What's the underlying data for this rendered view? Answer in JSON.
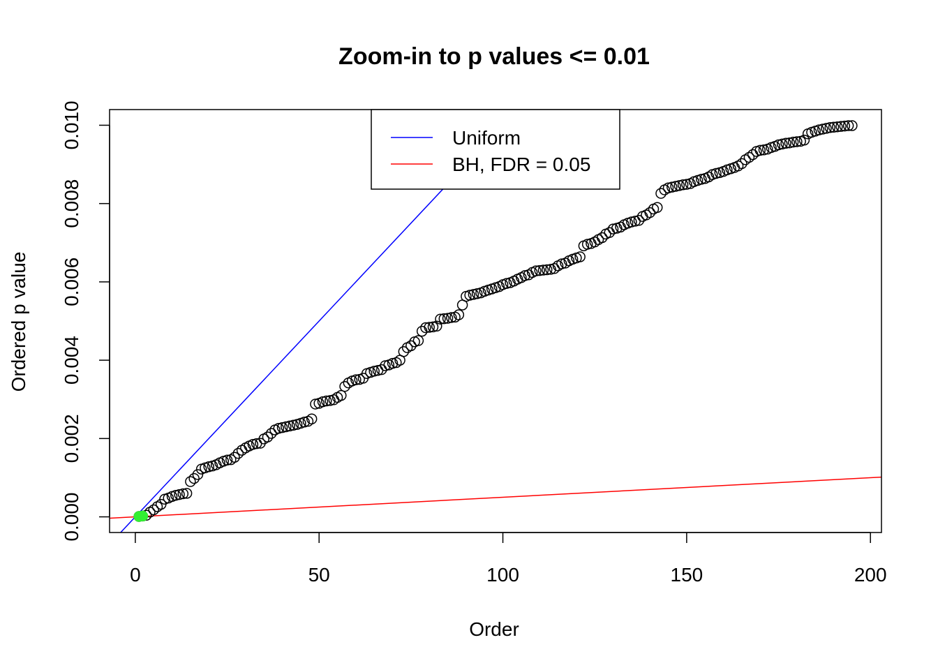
{
  "chart_data": {
    "type": "scatter",
    "title": "Zoom-in to p values <= 0.01",
    "xlabel": "Order",
    "ylabel": "Ordered p value",
    "xlim": [
      -7,
      203
    ],
    "ylim": [
      -0.0004,
      0.0104
    ],
    "x_ticks": [
      0,
      50,
      100,
      150,
      200
    ],
    "x_tick_labels": [
      "0",
      "50",
      "100",
      "150",
      "200"
    ],
    "y_ticks": [
      0,
      0.002,
      0.004,
      0.006,
      0.008,
      0.01
    ],
    "y_tick_labels": [
      "0.000",
      "0.002",
      "0.004",
      "0.006",
      "0.008",
      "0.010"
    ],
    "grid": false,
    "legend_position": "top-center",
    "legend": [
      {
        "label": "Uniform",
        "color": "#0000ff"
      },
      {
        "label": "BH, FDR = 0.05",
        "color": "#ff0000"
      }
    ],
    "lines": [
      {
        "name": "Uniform",
        "color": "#0000ff",
        "slope": 0.0001,
        "intercept": 0
      },
      {
        "name": "BH, FDR = 0.05",
        "color": "#ff0000",
        "slope": 5e-06,
        "intercept": 0
      }
    ],
    "points_color": "#000000",
    "significant_color": "#33ee33",
    "significant_points": {
      "x": [
        1,
        2
      ],
      "y": [
        1e-05,
        2e-05
      ]
    },
    "points": {
      "x": [
        1,
        2,
        3,
        4,
        5,
        6,
        7,
        8,
        9,
        10,
        11,
        12,
        13,
        14,
        15,
        16,
        17,
        18,
        19,
        20,
        21,
        22,
        23,
        24,
        25,
        26,
        27,
        28,
        29,
        30,
        31,
        32,
        33,
        34,
        35,
        36,
        37,
        38,
        39,
        40,
        41,
        42,
        43,
        44,
        45,
        46,
        47,
        48,
        49,
        50,
        51,
        52,
        53,
        54,
        55,
        56,
        57,
        58,
        59,
        60,
        61,
        62,
        63,
        64,
        65,
        66,
        67,
        68,
        69,
        70,
        71,
        72,
        73,
        74,
        75,
        76,
        77,
        78,
        79,
        80,
        81,
        82,
        83,
        84,
        85,
        86,
        87,
        88,
        89,
        90,
        91,
        92,
        93,
        94,
        95,
        96,
        97,
        98,
        99,
        100,
        101,
        102,
        103,
        104,
        105,
        106,
        107,
        108,
        109,
        110,
        111,
        112,
        113,
        114,
        115,
        116,
        117,
        118,
        119,
        120,
        121,
        122,
        123,
        124,
        125,
        126,
        127,
        128,
        129,
        130,
        131,
        132,
        133,
        134,
        135,
        136,
        137,
        138,
        139,
        140,
        141,
        142,
        143,
        144,
        145,
        146,
        147,
        148,
        149,
        150,
        151,
        152,
        153,
        154,
        155,
        156,
        157,
        158,
        159,
        160,
        161,
        162,
        163,
        164,
        165,
        166,
        167,
        168,
        169,
        170,
        171,
        172,
        173,
        174,
        175,
        176,
        177,
        178,
        179,
        180,
        181,
        182,
        183,
        184,
        185,
        186,
        187,
        188,
        189,
        190,
        191,
        192,
        193,
        194,
        195
      ],
      "y": [
        1e-05,
        2e-05,
        4e-05,
        0.00012,
        0.00018,
        0.00026,
        0.00032,
        0.00045,
        0.00048,
        0.00052,
        0.00055,
        0.00057,
        0.00059,
        0.0006,
        0.0009,
        0.00098,
        0.00108,
        0.00122,
        0.00125,
        0.00128,
        0.0013,
        0.00133,
        0.00138,
        0.00142,
        0.00145,
        0.00146,
        0.00152,
        0.00162,
        0.0017,
        0.00176,
        0.00181,
        0.00185,
        0.00187,
        0.00188,
        0.00199,
        0.00204,
        0.00213,
        0.00222,
        0.00226,
        0.00228,
        0.0023,
        0.00232,
        0.00234,
        0.00236,
        0.00239,
        0.00242,
        0.00244,
        0.0025,
        0.00288,
        0.0029,
        0.00294,
        0.00296,
        0.00297,
        0.00299,
        0.00305,
        0.0031,
        0.00333,
        0.00342,
        0.00347,
        0.0035,
        0.00351,
        0.00354,
        0.00366,
        0.00369,
        0.00372,
        0.00374,
        0.00376,
        0.00386,
        0.00388,
        0.00392,
        0.00394,
        0.004,
        0.00422,
        0.00432,
        0.00437,
        0.00447,
        0.0045,
        0.00474,
        0.00483,
        0.00484,
        0.00485,
        0.00487,
        0.00505,
        0.00506,
        0.00507,
        0.00509,
        0.0051,
        0.00516,
        0.00541,
        0.00563,
        0.00566,
        0.00568,
        0.0057,
        0.00572,
        0.00576,
        0.00579,
        0.00582,
        0.00585,
        0.00588,
        0.00593,
        0.00596,
        0.00598,
        0.00602,
        0.00607,
        0.00611,
        0.00616,
        0.00618,
        0.00624,
        0.00628,
        0.00629,
        0.0063,
        0.00631,
        0.00632,
        0.00634,
        0.00641,
        0.00646,
        0.00648,
        0.00654,
        0.00658,
        0.00661,
        0.00664,
        0.00692,
        0.00696,
        0.00698,
        0.00702,
        0.00708,
        0.00713,
        0.00722,
        0.00726,
        0.00735,
        0.00737,
        0.0074,
        0.00746,
        0.0075,
        0.00753,
        0.00755,
        0.00757,
        0.00767,
        0.00771,
        0.00777,
        0.00786,
        0.0079,
        0.00826,
        0.00835,
        0.0084,
        0.00842,
        0.00844,
        0.00846,
        0.00848,
        0.00849,
        0.00851,
        0.00856,
        0.00859,
        0.00862,
        0.00864,
        0.00868,
        0.00874,
        0.00877,
        0.00879,
        0.00882,
        0.00886,
        0.00889,
        0.00892,
        0.00896,
        0.00902,
        0.00912,
        0.00918,
        0.00925,
        0.00933,
        0.00936,
        0.00937,
        0.00939,
        0.00943,
        0.00946,
        0.0095,
        0.00952,
        0.00954,
        0.00955,
        0.00957,
        0.00958,
        0.00959,
        0.00962,
        0.00978,
        0.00982,
        0.00985,
        0.00988,
        0.0099,
        0.00992,
        0.00994,
        0.00995,
        0.00996,
        0.00997,
        0.00998,
        0.00999,
        0.00999
      ]
    }
  }
}
